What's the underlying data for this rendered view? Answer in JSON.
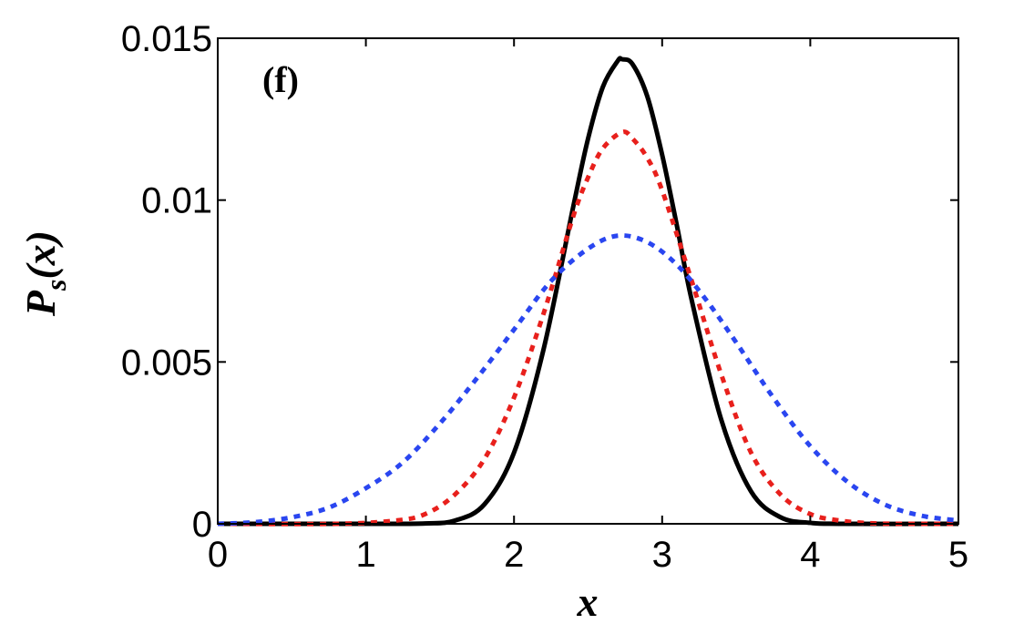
{
  "chart_data": {
    "type": "line",
    "panel_label": "(f)",
    "xlabel": "x",
    "ylabel": {
      "main": "P",
      "sub": "s",
      "arg": "(x)"
    },
    "xlim": [
      0,
      5
    ],
    "ylim": [
      0,
      0.015
    ],
    "xticks": [
      0,
      1,
      2,
      3,
      4,
      5
    ],
    "xtick_labels": [
      "0",
      "1",
      "2",
      "3",
      "4",
      "5"
    ],
    "yticks": [
      0,
      0.005,
      0.01,
      0.015
    ],
    "ytick_labels": [
      "0",
      "0.005",
      "0.01",
      "0.015"
    ],
    "grid": false,
    "legend": "none",
    "series": [
      {
        "color": "#000000",
        "style": "solid",
        "x": [
          0,
          1.0,
          1.4,
          1.6,
          1.8,
          2.0,
          2.2,
          2.4,
          2.5,
          2.6,
          2.7,
          2.73,
          2.8,
          2.9,
          3.0,
          3.1,
          3.2,
          3.4,
          3.6,
          3.8,
          4.0,
          4.2,
          5.0
        ],
        "y": [
          0,
          0,
          1e-05,
          0.0001,
          0.0006,
          0.0022,
          0.0054,
          0.0098,
          0.0119,
          0.0135,
          0.0143,
          0.01435,
          0.0142,
          0.0132,
          0.0114,
          0.0092,
          0.0069,
          0.0032,
          0.001,
          0.0002,
          3e-05,
          0,
          0
        ]
      },
      {
        "color": "#e8201c",
        "style": "dotted",
        "x": [
          0,
          0.8,
          1.2,
          1.4,
          1.6,
          1.8,
          2.0,
          2.2,
          2.4,
          2.5,
          2.6,
          2.73,
          2.8,
          2.9,
          3.0,
          3.2,
          3.4,
          3.6,
          3.8,
          4.0,
          4.2,
          4.4,
          4.6,
          5.0
        ],
        "y": [
          0,
          0,
          0.0001,
          0.0003,
          0.0009,
          0.002,
          0.0039,
          0.0065,
          0.0095,
          0.0107,
          0.0116,
          0.0121,
          0.0119,
          0.0113,
          0.0103,
          0.0075,
          0.0046,
          0.0022,
          0.0009,
          0.0003,
          0.0001,
          2e-05,
          0,
          0
        ]
      },
      {
        "color": "#2a46f0",
        "style": "dotted",
        "x": [
          0,
          0.25,
          0.5,
          0.75,
          1.0,
          1.25,
          1.5,
          1.75,
          2.0,
          2.25,
          2.5,
          2.7,
          2.9,
          3.1,
          3.3,
          3.5,
          3.75,
          4.0,
          4.25,
          4.5,
          4.75,
          5.0
        ],
        "y": [
          0.0,
          5e-05,
          0.0002,
          0.0005,
          0.0011,
          0.0019,
          0.0031,
          0.0045,
          0.006,
          0.0075,
          0.0085,
          0.0089,
          0.0087,
          0.008,
          0.0069,
          0.0056,
          0.0039,
          0.0024,
          0.0013,
          0.0006,
          0.00025,
          0.0001
        ]
      }
    ]
  }
}
